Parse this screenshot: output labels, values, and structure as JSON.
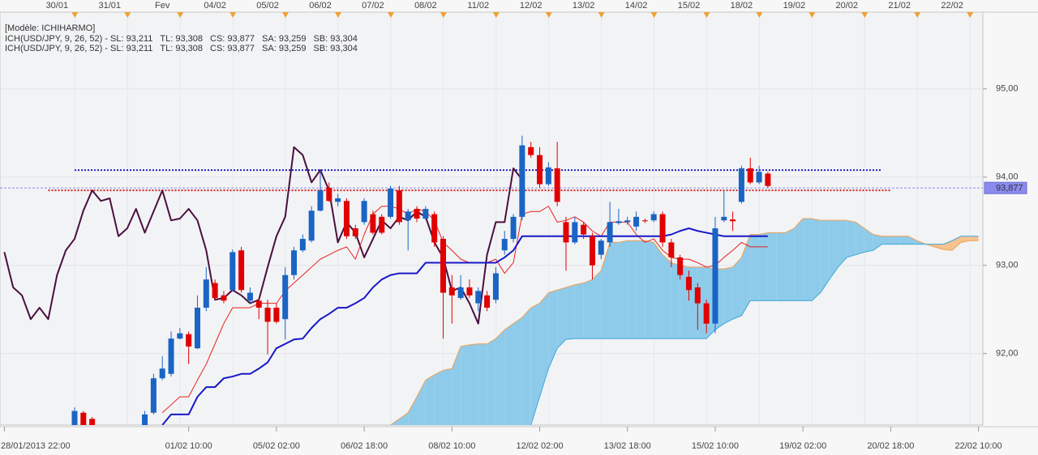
{
  "chart_data": {
    "type": "candlestick",
    "legend": {
      "model": "[Modèle: ICHIHARMO]",
      "rows": [
        [
          {
            "text": "ICH(USD/JPY, 9, 26, 52) - SL: 93,211",
            "color": "#e01010"
          },
          {
            "text": "TL: 93,308",
            "color": "#1818c8"
          },
          {
            "text": "CS: 93,877",
            "color": "#4b0f3f"
          },
          {
            "text": "SA: 93,259",
            "color": "#f0a050"
          },
          {
            "text": "SB: 93,304",
            "color": "#3aa8dc"
          }
        ],
        [
          {
            "text": "ICH(USD/JPY, 9, 26, 52) - SL: 93,211",
            "color": "#e01010"
          },
          {
            "text": "TL: 93,308",
            "color": "#1818c8"
          },
          {
            "text": "CS: 93,877",
            "color": "#4b0f3f"
          },
          {
            "text": "SA: 93,259",
            "color": "#f0a050"
          },
          {
            "text": "SB: 93,304",
            "color": "#3aa8dc"
          }
        ]
      ]
    },
    "xlim": [
      -0.5,
      111.5
    ],
    "ylim": [
      91.19,
      95.87
    ],
    "grid": true,
    "yticks": [
      {
        "value": 95,
        "label": "95,00"
      },
      {
        "value": 94,
        "label": "94,00"
      },
      {
        "value": 93,
        "label": "93,00"
      },
      {
        "value": 92,
        "label": "92,00"
      }
    ],
    "top_xticks": [
      {
        "value": 6,
        "label": "30/01"
      },
      {
        "value": 12,
        "label": "31/01"
      },
      {
        "value": 18,
        "label": "Fev"
      },
      {
        "value": 24,
        "label": "04/02"
      },
      {
        "value": 30,
        "label": "05/02"
      },
      {
        "value": 36,
        "label": "06/02"
      },
      {
        "value": 42,
        "label": "07/02"
      },
      {
        "value": 48,
        "label": "08/02"
      },
      {
        "value": 54,
        "label": "11/02"
      },
      {
        "value": 60,
        "label": "12/02"
      },
      {
        "value": 66,
        "label": "13/02"
      },
      {
        "value": 72,
        "label": "14/02"
      },
      {
        "value": 78,
        "label": "15/02"
      },
      {
        "value": 84,
        "label": "18/02"
      },
      {
        "value": 90,
        "label": "19/02"
      },
      {
        "value": 96,
        "label": "20/02"
      },
      {
        "value": 102,
        "label": "21/02"
      },
      {
        "value": 108,
        "label": "22/02"
      }
    ],
    "xticks": [
      {
        "value": 0,
        "label": "28/01/2013 22:00"
      },
      {
        "value": 21,
        "label": "01/02 10:00"
      },
      {
        "value": 31,
        "label": "05/02 02:00"
      },
      {
        "value": 41,
        "label": "06/02 18:00"
      },
      {
        "value": 51,
        "label": "08/02 10:00"
      },
      {
        "value": 61,
        "label": "12/02 02:00"
      },
      {
        "value": 71,
        "label": "13/02 18:00"
      },
      {
        "value": 81,
        "label": "15/02 10:00"
      },
      {
        "value": 91,
        "label": "19/02 02:00"
      },
      {
        "value": 101,
        "label": "20/02 18:00"
      },
      {
        "value": 111,
        "label": "22/02 10:00"
      }
    ],
    "up_color": "#1a64c4",
    "down_color": "#e00000",
    "candles": {
      "x": [
        8,
        9,
        10,
        16,
        17,
        18,
        19,
        20,
        21,
        22,
        23,
        24,
        25,
        26,
        27,
        28,
        29,
        30,
        31,
        32,
        33,
        34,
        35,
        36,
        37,
        38,
        39,
        40,
        41,
        42,
        43,
        44,
        45,
        46,
        47,
        48,
        49,
        50,
        51,
        52,
        53,
        54,
        55,
        56,
        57,
        58,
        59,
        60,
        61,
        62,
        63,
        64,
        65,
        66,
        67,
        68,
        69,
        70,
        71,
        72,
        73,
        74,
        75,
        76,
        77,
        78,
        79,
        80,
        81,
        82,
        83,
        84,
        85,
        86,
        87
      ],
      "open": [
        91.15,
        91.33,
        91.26,
        91.19,
        91.33,
        91.72,
        91.77,
        92.17,
        92.22,
        92.06,
        92.52,
        92.8,
        92.66,
        92.72,
        93.17,
        92.6,
        92.6,
        92.52,
        92.52,
        92.39,
        92.89,
        93.17,
        93.28,
        93.62,
        93.88,
        93.72,
        93.73,
        93.42,
        93.49,
        93.58,
        93.55,
        93.55,
        93.85,
        93.51,
        93.64,
        93.53,
        93.58,
        93.3,
        92.75,
        92.63,
        92.75,
        92.57,
        92.66,
        92.61,
        93.17,
        93.3,
        93.55,
        94.34,
        94.25,
        93.92,
        94.1,
        93.49,
        93.26,
        93.46,
        93.33,
        93.12,
        93.26,
        93.48,
        93.49,
        93.44,
        93.51,
        93.51,
        93.58,
        93.26,
        93.09,
        92.87,
        92.75,
        92.57,
        92.34,
        93.51,
        93.52,
        93.72,
        94.1,
        93.94,
        94.04
      ],
      "high": [
        91.39,
        91.35,
        91.28,
        91.35,
        91.77,
        91.97,
        92.25,
        92.29,
        92.25,
        92.66,
        92.98,
        92.84,
        92.71,
        93.18,
        93.21,
        92.75,
        92.63,
        92.61,
        92.57,
        92.98,
        93.21,
        93.35,
        93.67,
        94.08,
        93.94,
        93.81,
        93.76,
        93.46,
        93.76,
        93.62,
        93.58,
        93.9,
        93.9,
        93.64,
        93.67,
        93.67,
        93.61,
        93.33,
        92.89,
        92.89,
        92.84,
        92.75,
        92.71,
        92.98,
        93.39,
        93.58,
        94.47,
        94.4,
        94.34,
        94.17,
        94.4,
        93.55,
        93.55,
        93.49,
        93.37,
        93.3,
        93.72,
        93.64,
        93.55,
        93.61,
        93.53,
        93.61,
        93.61,
        93.3,
        93.12,
        92.94,
        92.8,
        92.61,
        93.55,
        93.85,
        93.61,
        94.13,
        94.22,
        94.13,
        94.06
      ],
      "low": [
        91.1,
        91.1,
        91.06,
        91.15,
        91.31,
        91.7,
        91.74,
        92.16,
        91.88,
        92.05,
        92.48,
        92.6,
        92.57,
        92.71,
        92.69,
        92.57,
        92.39,
        91.99,
        92.34,
        92.16,
        92.84,
        93.15,
        93.26,
        93.61,
        93.72,
        93.67,
        93.3,
        93.3,
        93.46,
        93.35,
        93.35,
        93.53,
        93.46,
        93.17,
        93.49,
        93.51,
        93.21,
        92.17,
        92.34,
        92.61,
        92.63,
        92.48,
        92.48,
        92.57,
        93.12,
        93.26,
        93.51,
        94.22,
        93.88,
        93.9,
        93.67,
        92.94,
        93.24,
        93.3,
        92.84,
        93.07,
        93.21,
        93.46,
        93.46,
        93.39,
        93.48,
        93.49,
        93.21,
        92.98,
        92.84,
        92.6,
        92.27,
        92.23,
        92.23,
        93.49,
        93.39,
        93.7,
        93.92,
        93.92,
        93.88
      ],
      "close": [
        91.35,
        91.15,
        91.1,
        91.31,
        91.72,
        91.83,
        92.17,
        92.23,
        92.08,
        92.52,
        92.84,
        92.63,
        92.6,
        93.15,
        92.72,
        92.69,
        92.52,
        92.36,
        92.36,
        92.89,
        93.17,
        93.3,
        93.62,
        93.85,
        93.73,
        93.76,
        93.33,
        93.33,
        93.73,
        93.37,
        93.37,
        93.87,
        93.49,
        93.61,
        93.53,
        93.64,
        93.26,
        92.69,
        92.66,
        92.75,
        92.66,
        92.71,
        92.52,
        92.91,
        93.3,
        93.55,
        94.36,
        94.25,
        93.92,
        94.11,
        93.72,
        93.26,
        93.49,
        93.35,
        93.0,
        93.28,
        93.49,
        93.5,
        93.51,
        93.55,
        93.5,
        93.58,
        93.26,
        93.09,
        92.89,
        92.72,
        92.57,
        92.34,
        93.42,
        93.55,
        93.5,
        94.1,
        93.94,
        94.06,
        93.9
      ]
    },
    "lines": [
      {
        "color": "#4b0f3f",
        "x": [
          0,
          1,
          2,
          3,
          4,
          5,
          6,
          7,
          8,
          9,
          10,
          11,
          12,
          13,
          14,
          15,
          16,
          17,
          18,
          19,
          20,
          21,
          22,
          23,
          24,
          25,
          26,
          27,
          28,
          29,
          30,
          31,
          32,
          33,
          34,
          35,
          36,
          37,
          38,
          39,
          40,
          41,
          42,
          43,
          44,
          45,
          46,
          47,
          48,
          49,
          50,
          51,
          52,
          53,
          54,
          55,
          56,
          57,
          58,
          59
        ],
        "values": [
          93.15,
          92.75,
          92.66,
          92.39,
          92.52,
          92.39,
          92.89,
          93.17,
          93.3,
          93.62,
          93.85,
          93.73,
          93.76,
          93.33,
          93.42,
          93.64,
          93.37,
          93.61,
          93.85,
          93.51,
          93.53,
          93.64,
          93.51,
          93.17,
          92.61,
          92.63,
          92.72,
          92.66,
          92.57,
          92.61,
          92.98,
          93.33,
          93.55,
          94.34,
          94.25,
          93.94,
          94.08,
          93.85,
          93.26,
          93.49,
          93.37,
          93.09,
          93.3,
          93.51,
          93.42,
          93.55,
          93.51,
          93.61,
          93.55,
          93.26,
          93.09,
          92.71,
          92.75,
          92.57,
          92.34,
          93.12,
          93.49,
          93.49,
          94.1,
          93.97
        ]
      },
      {
        "color": "#e82020",
        "x": [
          18,
          19,
          20,
          21,
          22,
          23,
          24,
          25,
          26,
          27,
          28,
          29,
          30,
          31,
          32,
          33,
          34,
          35,
          36,
          37,
          38,
          39,
          40,
          41,
          42,
          43,
          44,
          45,
          46,
          47,
          48,
          49,
          50,
          51,
          52,
          53,
          54,
          55,
          56,
          57,
          58,
          59,
          60,
          61,
          62,
          63,
          64,
          65,
          66,
          67,
          68,
          69,
          70,
          71,
          72,
          73,
          74,
          75,
          76,
          77,
          78,
          79,
          80,
          81,
          82,
          83,
          84,
          85,
          86,
          87
        ],
        "values": [
          91.33,
          91.42,
          91.51,
          91.51,
          91.7,
          91.88,
          92.11,
          92.34,
          92.52,
          92.52,
          92.52,
          92.57,
          92.57,
          92.57,
          92.71,
          92.8,
          92.89,
          92.98,
          93.07,
          93.12,
          93.17,
          93.21,
          93.07,
          93.35,
          93.58,
          93.67,
          93.67,
          93.64,
          93.58,
          93.64,
          93.61,
          93.51,
          93.26,
          93.17,
          93.07,
          93.03,
          93.03,
          93.03,
          93.07,
          92.91,
          93.03,
          93.58,
          93.61,
          93.61,
          93.67,
          93.49,
          93.51,
          93.55,
          93.49,
          93.39,
          93.33,
          93.49,
          93.49,
          93.49,
          93.35,
          93.26,
          93.3,
          93.17,
          93.09,
          93.07,
          93.07,
          93.03,
          92.98,
          93.0,
          93.09,
          93.17,
          93.26,
          93.21,
          93.21,
          93.21
        ]
      },
      {
        "color": "#1818c8",
        "x": [
          18,
          19,
          20,
          21,
          22,
          23,
          24,
          25,
          26,
          27,
          28,
          29,
          30,
          31,
          32,
          33,
          34,
          35,
          36,
          37,
          38,
          39,
          40,
          41,
          42,
          43,
          44,
          45,
          46,
          47,
          48,
          49,
          50,
          51,
          52,
          53,
          54,
          55,
          56,
          57,
          58,
          59,
          60,
          61,
          62,
          63,
          64,
          65,
          66,
          67,
          68,
          69,
          70,
          71,
          72,
          73,
          74,
          75,
          76,
          77,
          78,
          79,
          80,
          81,
          82,
          83,
          84,
          85,
          86,
          87
        ],
        "values": [
          91.19,
          91.31,
          91.31,
          91.31,
          91.51,
          91.62,
          91.62,
          91.72,
          91.74,
          91.77,
          91.77,
          91.83,
          91.9,
          92.06,
          92.11,
          92.16,
          92.17,
          92.29,
          92.39,
          92.45,
          92.52,
          92.52,
          92.57,
          92.63,
          92.75,
          92.84,
          92.89,
          92.91,
          92.91,
          92.91,
          93.03,
          93.03,
          93.03,
          93.03,
          93.03,
          93.03,
          93.03,
          93.03,
          93.03,
          93.09,
          93.17,
          93.33,
          93.33,
          93.33,
          93.33,
          93.33,
          93.33,
          93.33,
          93.33,
          93.33,
          93.33,
          93.33,
          93.33,
          93.33,
          93.33,
          93.33,
          93.33,
          93.33,
          93.35,
          93.39,
          93.42,
          93.39,
          93.37,
          93.35,
          93.33,
          93.33,
          93.33,
          93.33,
          93.33,
          93.33
        ]
      }
    ],
    "cloud": {
      "x": [
        44,
        45,
        46,
        47,
        48,
        49,
        50,
        51,
        52,
        53,
        54,
        55,
        56,
        57,
        58,
        59,
        60,
        61,
        62,
        63,
        64,
        65,
        66,
        67,
        68,
        69,
        70,
        71,
        72,
        73,
        74,
        75,
        76,
        77,
        78,
        79,
        80,
        81,
        82,
        83,
        84,
        85,
        86,
        87,
        88,
        89,
        90,
        91,
        92,
        93,
        94,
        95,
        96,
        97,
        98,
        99,
        100,
        101,
        102,
        103,
        104,
        105,
        106,
        107,
        108,
        109,
        110,
        111
      ],
      "a": {
        "color": "#f0a050",
        "values": [
          91.19,
          91.26,
          91.33,
          91.51,
          91.7,
          91.76,
          91.81,
          91.83,
          92.08,
          92.1,
          92.11,
          92.11,
          92.17,
          92.27,
          92.34,
          92.41,
          92.52,
          92.57,
          92.69,
          92.72,
          92.75,
          92.78,
          92.8,
          92.84,
          92.94,
          93.26,
          93.26,
          93.28,
          93.28,
          93.28,
          93.26,
          93.12,
          93.03,
          93.0,
          92.98,
          92.98,
          92.98,
          92.96,
          92.96,
          92.98,
          93.09,
          93.35,
          93.35,
          93.37,
          93.37,
          93.37,
          93.42,
          93.53,
          93.53,
          93.51,
          93.51,
          93.51,
          93.51,
          93.49,
          93.42,
          93.35,
          93.33,
          93.33,
          93.33,
          93.33,
          93.28,
          93.24,
          93.21,
          93.18,
          93.17,
          93.26,
          93.28,
          93.28
        ]
      },
      "b": {
        "color": "#3aa8dc",
        "values": [
          null,
          null,
          null,
          null,
          null,
          null,
          null,
          null,
          null,
          null,
          null,
          null,
          null,
          null,
          null,
          null,
          91.19,
          91.51,
          91.83,
          92.06,
          92.16,
          92.17,
          92.17,
          92.17,
          92.17,
          92.17,
          92.17,
          92.17,
          92.17,
          92.17,
          92.17,
          92.17,
          92.17,
          92.17,
          92.17,
          92.17,
          92.17,
          92.27,
          92.34,
          92.39,
          92.43,
          92.6,
          92.6,
          92.6,
          92.6,
          92.6,
          92.6,
          92.6,
          92.6,
          92.69,
          92.84,
          92.98,
          93.09,
          93.12,
          93.15,
          93.17,
          93.24,
          93.24,
          93.24,
          93.24,
          93.24,
          93.24,
          93.24,
          93.24,
          93.28,
          93.33,
          93.33,
          93.33
        ]
      },
      "color_a_above": "#8ecbea",
      "color_b_above": "#f6c28e"
    },
    "levels": [
      {
        "value": 94.08,
        "x": [
          8,
          100
        ],
        "color": "#2020c0"
      },
      {
        "value": 93.85,
        "x": [
          5,
          101
        ],
        "color": "#d02020"
      }
    ],
    "last": {
      "value": 93.877,
      "label": "93,877",
      "color": "#8a8af0"
    }
  }
}
